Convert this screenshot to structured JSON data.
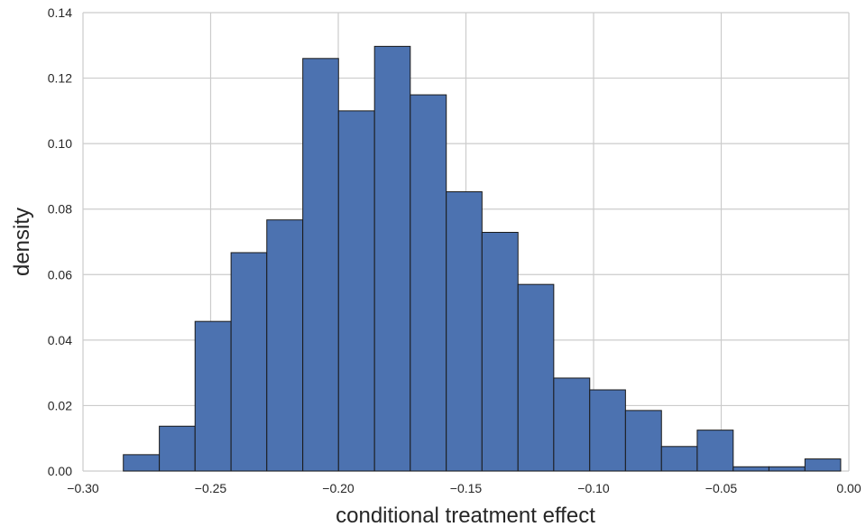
{
  "chart_data": {
    "type": "bar",
    "xlabel": "conditional treatment effect",
    "ylabel": "density",
    "xlim": [
      -0.3,
      0.0
    ],
    "ylim": [
      0.0,
      0.14
    ],
    "grid": true,
    "bar_color": "#4c72b0",
    "x_ticks": [
      {
        "value": -0.3,
        "label": "−0.30"
      },
      {
        "value": -0.25,
        "label": "−0.25"
      },
      {
        "value": -0.2,
        "label": "−0.20"
      },
      {
        "value": -0.15,
        "label": "−0.15"
      },
      {
        "value": -0.1,
        "label": "−0.10"
      },
      {
        "value": -0.05,
        "label": "−0.05"
      },
      {
        "value": 0.0,
        "label": "0.00"
      }
    ],
    "y_ticks": [
      {
        "value": 0.0,
        "label": "0.00"
      },
      {
        "value": 0.02,
        "label": "0.02"
      },
      {
        "value": 0.04,
        "label": "0.04"
      },
      {
        "value": 0.06,
        "label": "0.06"
      },
      {
        "value": 0.08,
        "label": "0.08"
      },
      {
        "value": 0.1,
        "label": "0.10"
      },
      {
        "value": 0.12,
        "label": "0.12"
      },
      {
        "value": 0.14,
        "label": "0.14"
      }
    ],
    "bins": [
      {
        "x0": -0.2842,
        "x1": -0.2701,
        "value": 0.005
      },
      {
        "x0": -0.2701,
        "x1": -0.2561,
        "value": 0.0137
      },
      {
        "x0": -0.2561,
        "x1": -0.242,
        "value": 0.0457
      },
      {
        "x0": -0.242,
        "x1": -0.228,
        "value": 0.0667
      },
      {
        "x0": -0.228,
        "x1": -0.2139,
        "value": 0.0767
      },
      {
        "x0": -0.2139,
        "x1": -0.1999,
        "value": 0.126
      },
      {
        "x0": -0.1999,
        "x1": -0.1858,
        "value": 0.11
      },
      {
        "x0": -0.1858,
        "x1": -0.1718,
        "value": 0.1297
      },
      {
        "x0": -0.1718,
        "x1": -0.1577,
        "value": 0.1149
      },
      {
        "x0": -0.1577,
        "x1": -0.1437,
        "value": 0.0853
      },
      {
        "x0": -0.1437,
        "x1": -0.1296,
        "value": 0.0729
      },
      {
        "x0": -0.1296,
        "x1": -0.1156,
        "value": 0.057
      },
      {
        "x0": -0.1156,
        "x1": -0.1015,
        "value": 0.0284
      },
      {
        "x0": -0.1015,
        "x1": -0.0875,
        "value": 0.0248
      },
      {
        "x0": -0.0875,
        "x1": -0.0734,
        "value": 0.0185
      },
      {
        "x0": -0.0734,
        "x1": -0.0594,
        "value": 0.0075
      },
      {
        "x0": -0.0594,
        "x1": -0.0453,
        "value": 0.0125
      },
      {
        "x0": -0.0453,
        "x1": -0.0313,
        "value": 0.0013
      },
      {
        "x0": -0.0313,
        "x1": -0.0172,
        "value": 0.0013
      },
      {
        "x0": -0.0172,
        "x1": -0.0032,
        "value": 0.0037
      }
    ]
  }
}
